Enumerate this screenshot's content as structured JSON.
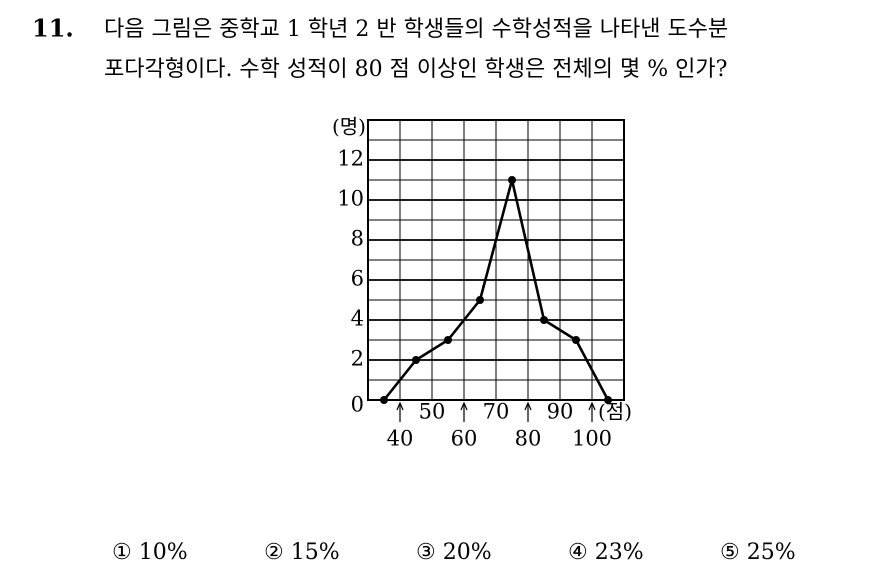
{
  "question": {
    "number": "11.",
    "lines": [
      "다음 그림은 중학교 1 학년 2 반 학생들의 수학성적을 나타낸 도수분",
      "포다각형이다. 수학 성적이 80 점 이상인 학생은 전체의 몇 % 인가?"
    ]
  },
  "choices": [
    "① 10%",
    "② 15%",
    "③ 20%",
    "④ 23%",
    "⑤ 25%"
  ],
  "chart_data": {
    "type": "line",
    "y_label": "(명)",
    "x_label": "(점)",
    "x": [
      35,
      45,
      55,
      65,
      75,
      85,
      95,
      105
    ],
    "series": [
      {
        "color": "#000000",
        "values": [
          0,
          2,
          3,
          5,
          11,
          4,
          3,
          0
        ]
      }
    ],
    "xlim": [
      30,
      110
    ],
    "xticks": [
      40,
      50,
      60,
      70,
      80,
      90,
      100
    ],
    "ylim": [
      0,
      14
    ],
    "yticks": [
      0,
      2,
      4,
      6,
      8,
      10,
      12
    ],
    "minor_yticks": [
      1,
      3,
      5,
      7,
      9,
      11,
      13
    ],
    "grid": true
  }
}
